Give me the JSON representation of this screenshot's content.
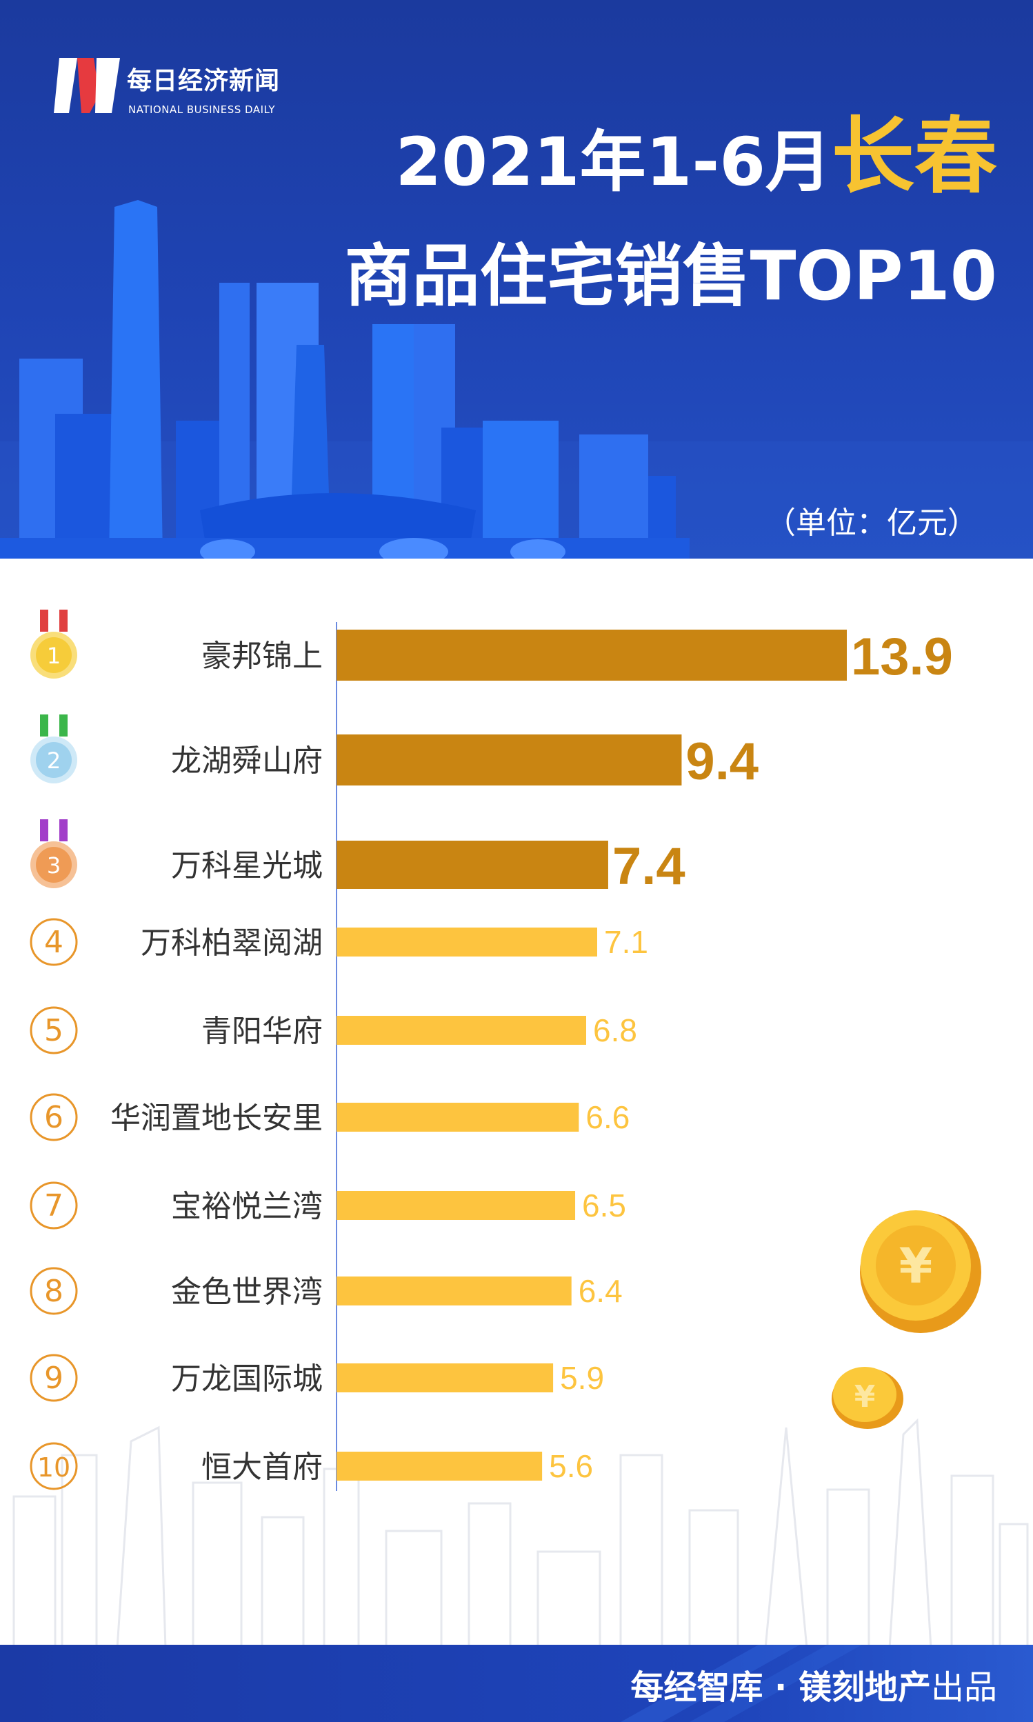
{
  "brand": {
    "name_cn": "每日经济新闻",
    "name_en": "NATIONAL BUSINESS DAILY"
  },
  "title": {
    "prefix": "2021年1-6月",
    "city": "长春",
    "line2": "商品住宅销售TOP10"
  },
  "unit_label": "（单位：亿元）",
  "footer": {
    "bold": "每经智库 · 镁刻地产",
    "light": "出品"
  },
  "colors": {
    "header_blue": "#1f44b4",
    "top3_bar": "#c98512",
    "other_bar": "#fdc43f",
    "rank_circle": "#e8962a",
    "title_highlight": "#f7c331"
  },
  "chart_data": {
    "type": "bar",
    "orientation": "horizontal",
    "title": "2021年1-6月长春商品住宅销售TOP10",
    "unit": "亿元",
    "ranks": [
      "1",
      "2",
      "3",
      "4",
      "5",
      "6",
      "7",
      "8",
      "9",
      "10"
    ],
    "categories": [
      "豪邦锦上",
      "龙湖舜山府",
      "万科星光城",
      "万科柏翠阅湖",
      "青阳华府",
      "华润置地长安里",
      "宝裕悦兰湾",
      "金色世界湾",
      "万龙国际城",
      "恒大首府"
    ],
    "values": [
      13.9,
      9.4,
      7.4,
      7.1,
      6.8,
      6.6,
      6.5,
      6.4,
      5.9,
      5.6
    ],
    "value_labels": [
      "13.9",
      "9.4",
      "7.4",
      "7.1",
      "6.8",
      "6.6",
      "6.5",
      "6.4",
      "5.9",
      "5.6"
    ],
    "medal_icons": [
      "gold-medal-icon",
      "silver-medal-icon",
      "bronze-medal-icon"
    ],
    "xlim": [
      0,
      13.9
    ],
    "grid": false,
    "legend": "none"
  }
}
